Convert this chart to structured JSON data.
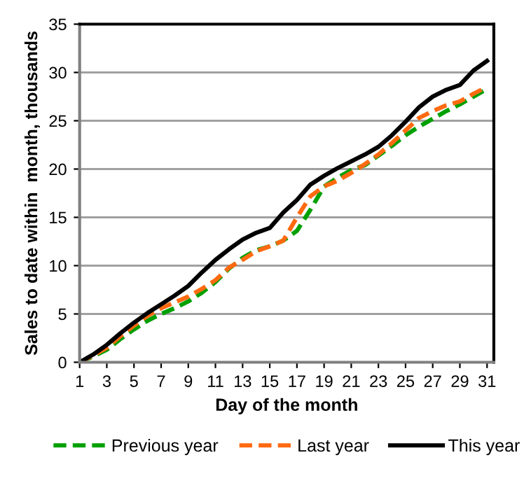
{
  "chart_data": {
    "type": "line",
    "xlabel": "Day of the month",
    "ylabel": "Sales to date within  month, thousands",
    "x": [
      1,
      2,
      3,
      4,
      5,
      6,
      7,
      8,
      9,
      10,
      11,
      12,
      13,
      14,
      15,
      16,
      17,
      18,
      19,
      20,
      21,
      22,
      23,
      24,
      25,
      26,
      27,
      28,
      29,
      30,
      31
    ],
    "series": [
      {
        "name": "Previous year",
        "color": "#00a000",
        "line_style": "dashed",
        "values": [
          0,
          0.6,
          1.3,
          2.4,
          3.4,
          4.3,
          5.0,
          5.6,
          6.3,
          7.2,
          8.3,
          9.7,
          10.8,
          11.6,
          12.0,
          12.6,
          13.6,
          15.8,
          18.2,
          19.1,
          19.9,
          20.4,
          21.4,
          22.4,
          23.5,
          24.4,
          25.2,
          26.0,
          26.7,
          27.5,
          28.3
        ]
      },
      {
        "name": "Last year",
        "color": "#ff6a10",
        "line_style": "dashed",
        "values": [
          0,
          0.7,
          1.5,
          2.7,
          3.8,
          4.8,
          5.6,
          6.2,
          6.8,
          7.6,
          8.5,
          9.8,
          10.6,
          11.5,
          12.0,
          12.6,
          15.0,
          17.2,
          18.2,
          18.8,
          19.6,
          20.5,
          21.5,
          22.7,
          24.0,
          25.3,
          26.0,
          26.6,
          27.0,
          27.8,
          28.5
        ]
      },
      {
        "name": "This year",
        "color": "#000000",
        "line_style": "solid",
        "values": [
          0,
          0.8,
          1.8,
          3.0,
          4.1,
          5.1,
          6.0,
          6.9,
          7.9,
          9.3,
          10.6,
          11.7,
          12.7,
          13.4,
          13.9,
          15.5,
          16.8,
          18.4,
          19.3,
          20.1,
          20.8,
          21.5,
          22.3,
          23.5,
          24.9,
          26.4,
          27.5,
          28.2,
          28.7,
          30.2,
          31.2
        ]
      }
    ],
    "xlim": [
      1,
      31.5
    ],
    "xticks": [
      1,
      3,
      5,
      7,
      9,
      11,
      13,
      15,
      17,
      19,
      21,
      23,
      25,
      27,
      29,
      31
    ],
    "ylim": [
      0,
      35
    ],
    "yticks": [
      0,
      5,
      10,
      15,
      20,
      25,
      30,
      35
    ],
    "grid": "y",
    "legend": "bottom",
    "marker": "none"
  }
}
